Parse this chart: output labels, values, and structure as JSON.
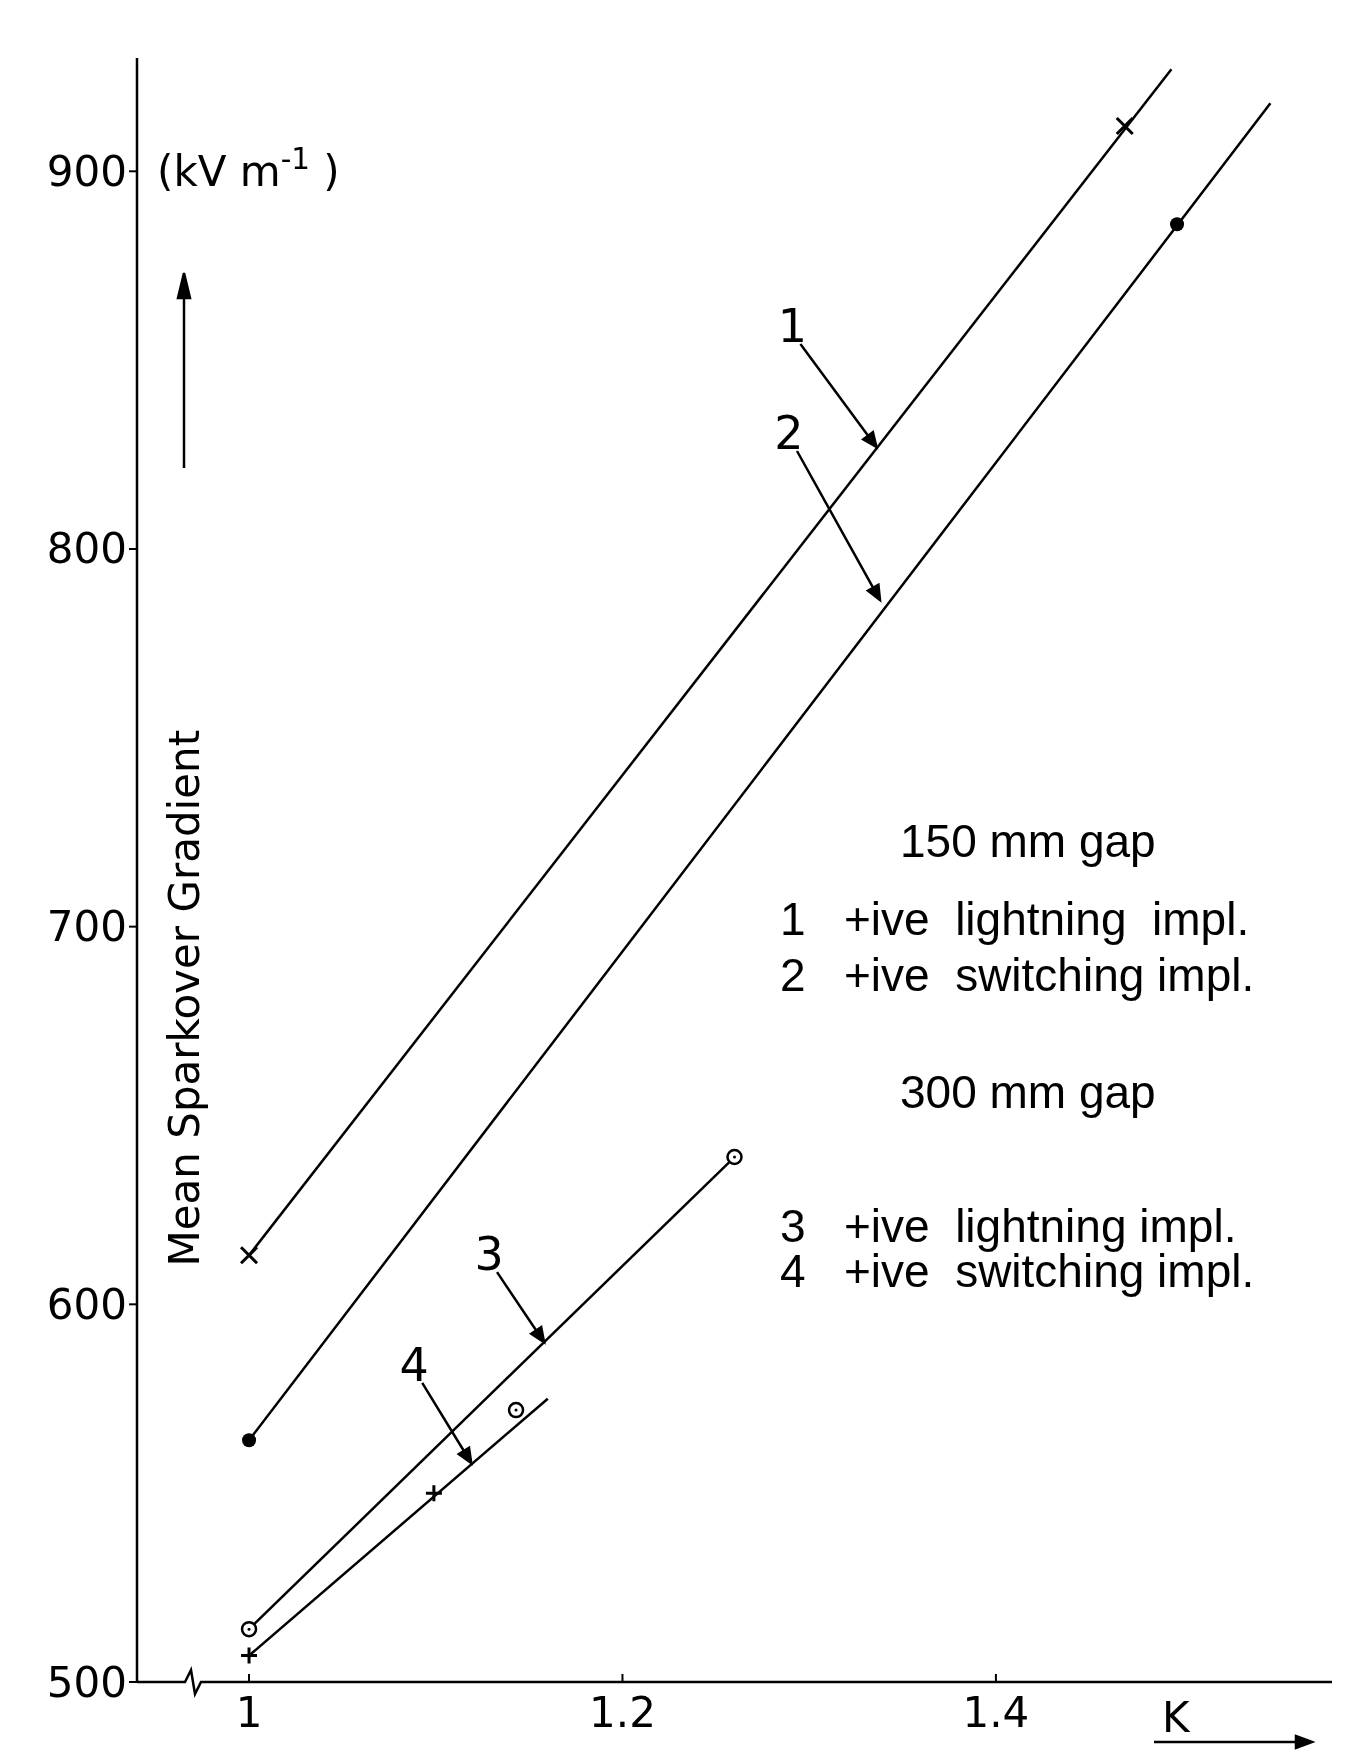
{
  "chart_data": {
    "type": "line",
    "xlabel": "K",
    "ylabel": "Mean Sparkover Gradient",
    "xlim": [
      0.94,
      1.58
    ],
    "ylim": [
      500,
      930
    ],
    "xticks": [
      1,
      1.2,
      1.4
    ],
    "yticks": [
      500,
      600,
      700,
      800,
      900
    ],
    "grid": false,
    "series": [
      {
        "color": "#000000",
        "marker": "none",
        "x": [
          1,
          1.494
        ],
        "values": [
          613,
          927
        ]
      },
      {
        "color": "#000000",
        "marker": "none",
        "x": [
          1,
          1.547
        ],
        "values": [
          564,
          918
        ]
      },
      {
        "color": "#000000",
        "marker": "none",
        "x": [
          1,
          1.26
        ],
        "values": [
          514,
          639
        ]
      },
      {
        "color": "#000000",
        "marker": "none",
        "x": [
          1,
          1.16
        ],
        "values": [
          507,
          575
        ]
      },
      {
        "type": "scatter",
        "color": "#000000",
        "marker": "cross",
        "x": [
          1,
          1.469
        ],
        "values": [
          613,
          912
        ]
      },
      {
        "type": "scatter",
        "color": "#000000",
        "marker": "circle",
        "x": [
          1,
          1.497
        ],
        "values": [
          564,
          886
        ]
      },
      {
        "type": "scatter",
        "color": "#000000",
        "marker": "circle-open",
        "x": [
          1,
          1.143,
          1.26
        ],
        "values": [
          514,
          572,
          639
        ]
      },
      {
        "type": "scatter",
        "color": "#000000",
        "marker": "plus",
        "x": [
          1,
          1.099
        ],
        "values": [
          507,
          550
        ]
      }
    ],
    "annotations": [
      "(kV m$^{-1}$ )",
      "150 mm gap",
      "1   +ive  lightning  impl.",
      "2   +ive  switching impl.",
      "300 mm gap",
      "3   +ive  lightning impl.",
      "4   +ive  switching impl.",
      {
        "text": "1",
        "x": 1.336,
        "y": 827
      },
      "2",
      {
        "text": "3",
        "x": 1.158,
        "y": 590
      },
      {
        "text": "4",
        "x": 1.119,
        "y": 558
      }
    ]
  }
}
